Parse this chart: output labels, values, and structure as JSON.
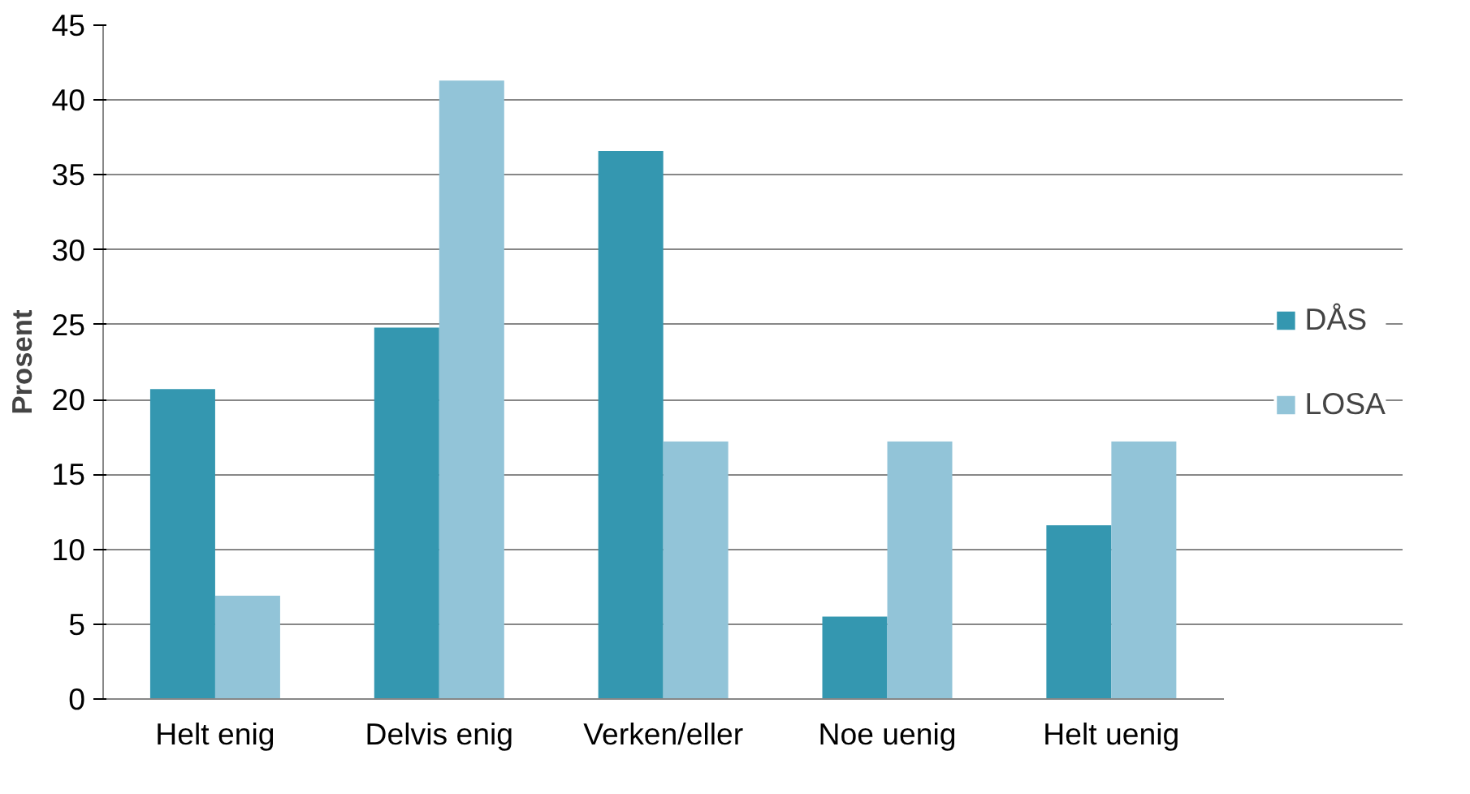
{
  "chart_data": {
    "type": "bar",
    "ylabel": "Prosent",
    "categories": [
      "Helt enig",
      "Delvis enig",
      "Verken/eller",
      "Noe uenig",
      "Helt uenig"
    ],
    "series": [
      {
        "name": "DÅS",
        "color": "#3497b0",
        "values": [
          20.7,
          24.8,
          36.6,
          5.5,
          11.6
        ]
      },
      {
        "name": "LOSA",
        "color": "#92c4d8",
        "values": [
          6.9,
          41.3,
          17.2,
          17.2,
          17.2
        ]
      }
    ],
    "ylim": [
      0,
      45
    ],
    "yticks": [
      0,
      5,
      10,
      15,
      20,
      25,
      30,
      35,
      40,
      45
    ],
    "grid": "y",
    "legend": "right"
  }
}
